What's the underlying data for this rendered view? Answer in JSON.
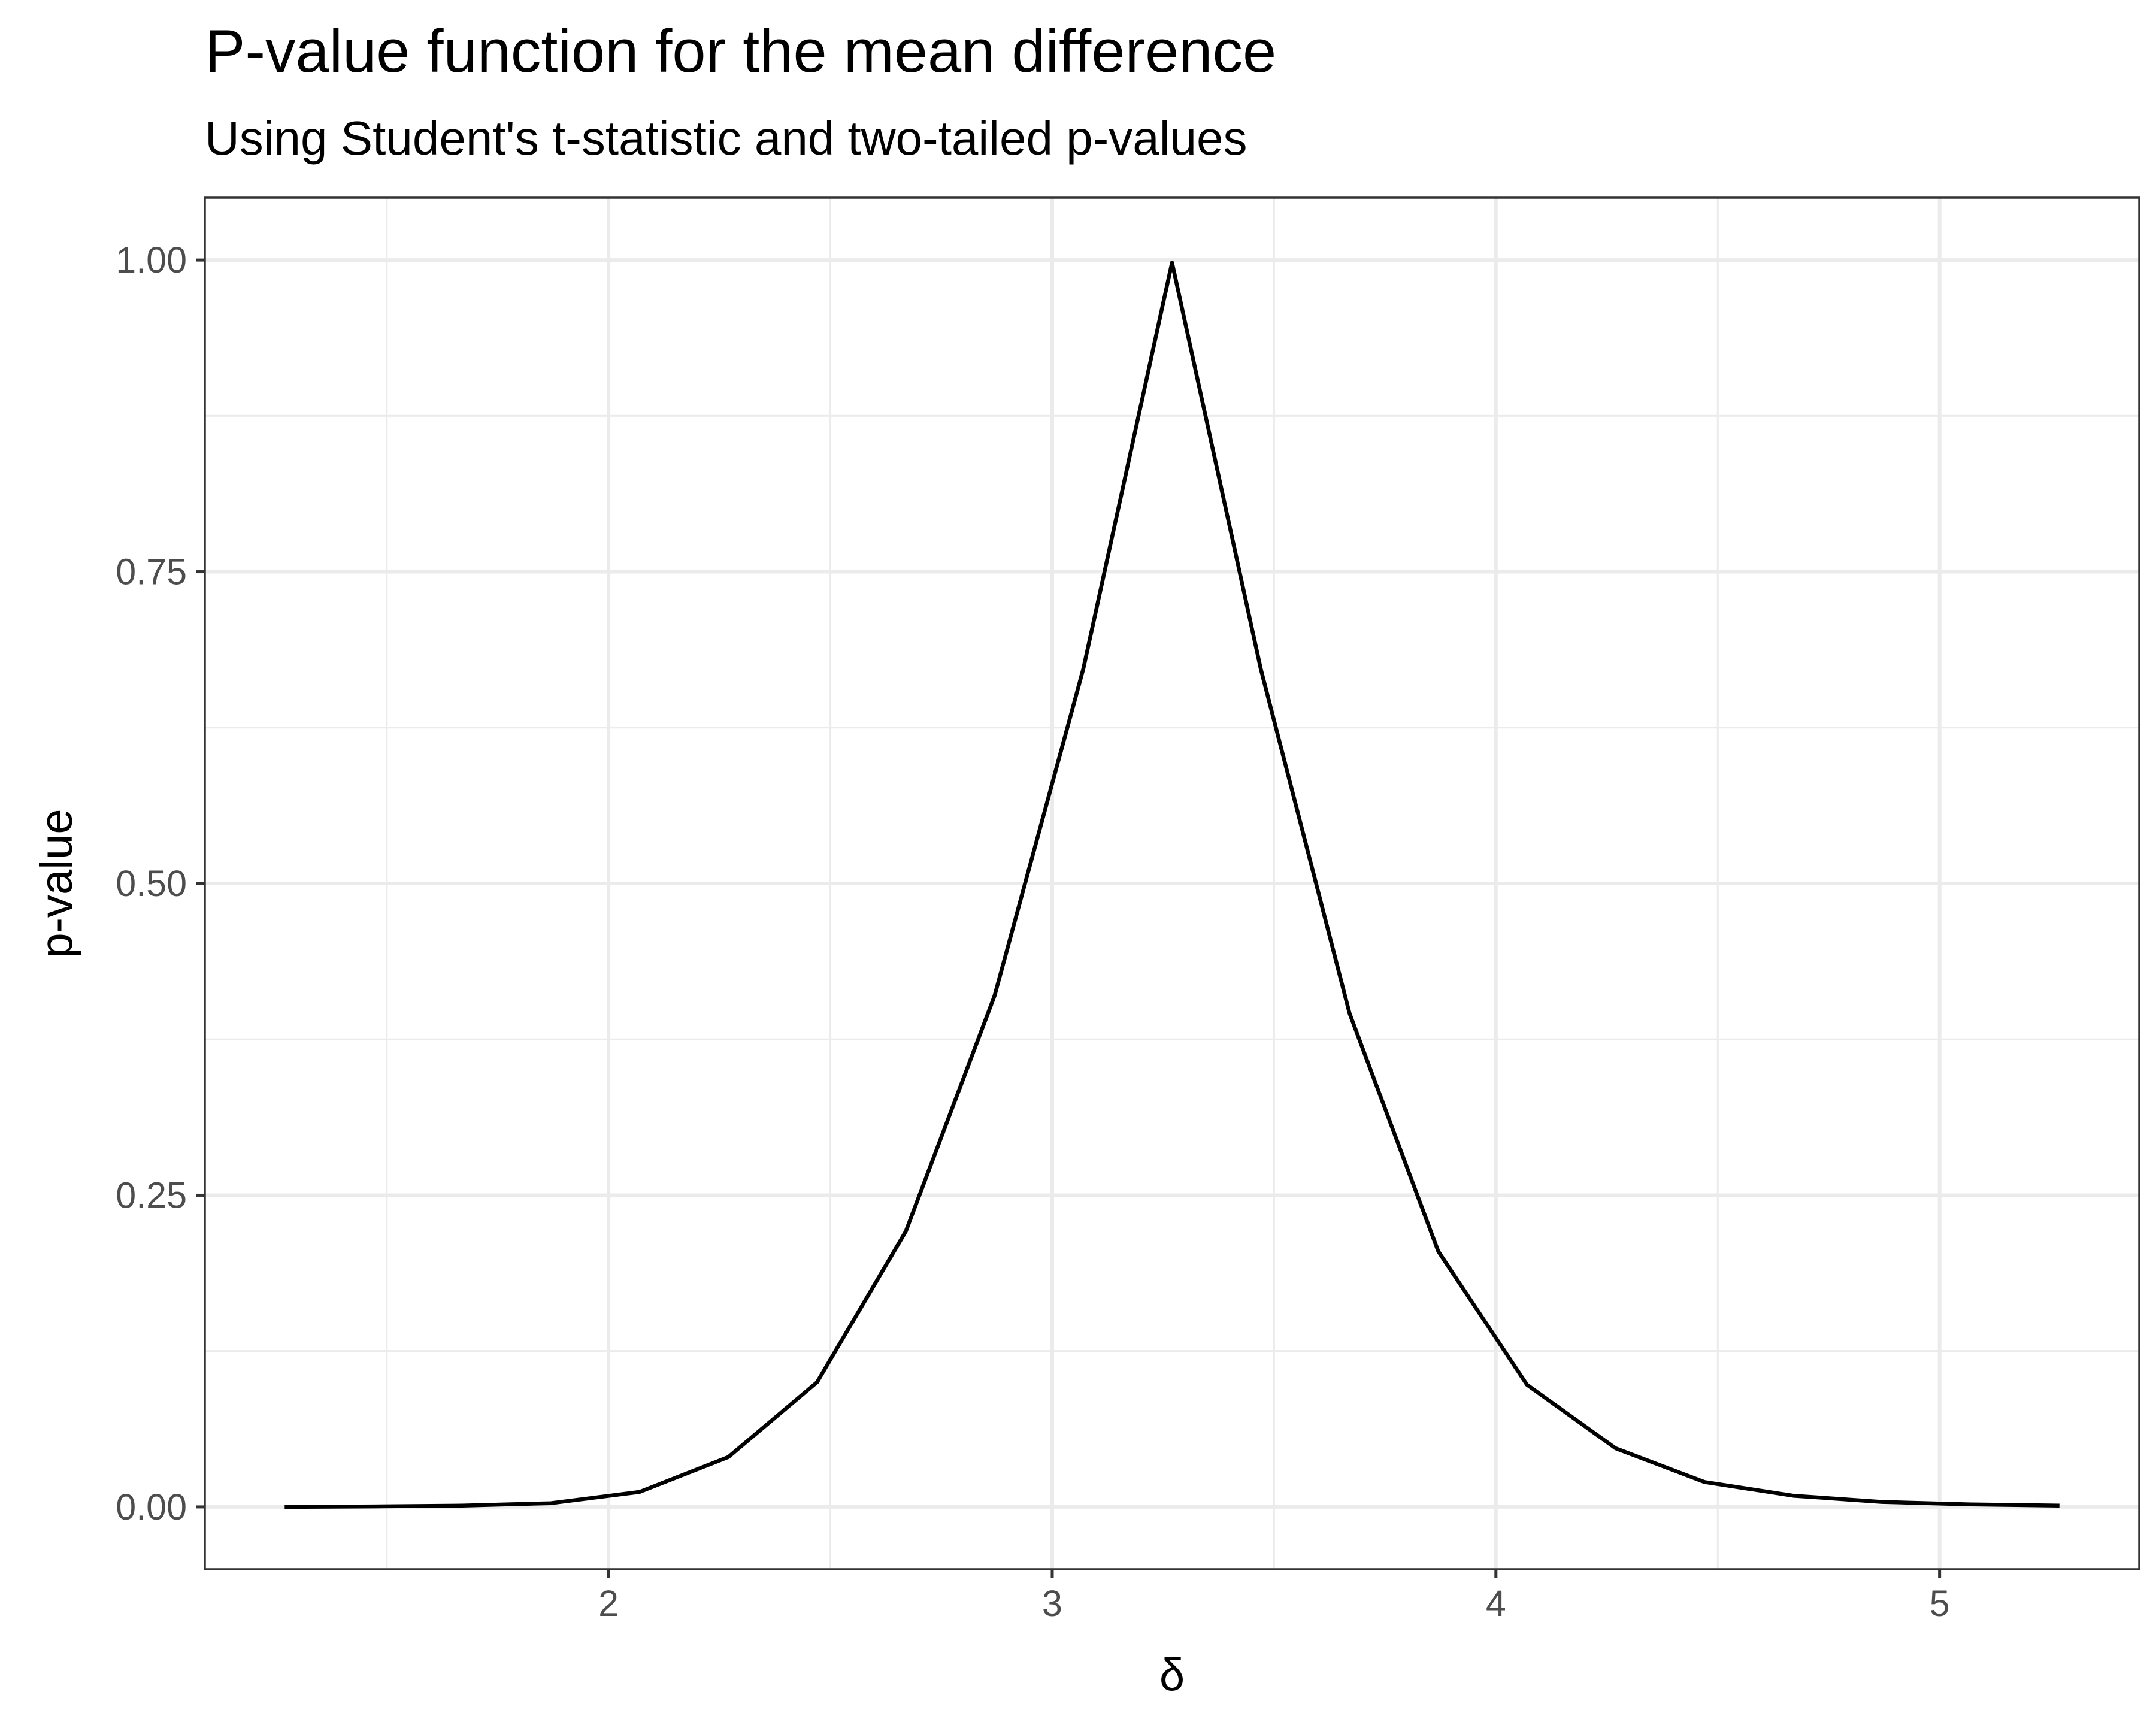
{
  "chart_data": {
    "type": "line",
    "title": "P-value function for the mean difference",
    "subtitle": "Using Student's t-statistic and two-tailed p-values",
    "xlabel": "δ",
    "ylabel": "p-value",
    "xlim": [
      1.09,
      5.45
    ],
    "ylim": [
      -0.05,
      1.05
    ],
    "x_ticks": [
      2,
      3,
      4,
      5
    ],
    "x_tick_labels": [
      "2",
      "3",
      "4",
      "5"
    ],
    "x_minor_ticks": [
      1.5,
      2.5,
      3.5,
      4.5
    ],
    "y_ticks": [
      0,
      0.25,
      0.5,
      0.75,
      1
    ],
    "y_tick_labels": [
      "0.00",
      "0.25",
      "0.50",
      "0.75",
      "1.00"
    ],
    "y_minor_ticks": [
      0.125,
      0.375,
      0.625,
      0.875
    ],
    "grid": true,
    "line_color": "#000000",
    "series": [
      {
        "x": [
          1.27,
          1.47,
          1.67,
          1.87,
          2.07,
          2.27,
          2.47,
          2.67,
          2.87,
          3.07,
          3.27,
          3.47,
          3.67,
          3.87,
          4.07,
          4.27,
          4.47,
          4.67,
          4.87,
          5.07,
          5.27
        ],
        "y": [
          0.0,
          0.0004,
          0.001,
          0.003,
          0.012,
          0.04,
          0.1,
          0.221,
          0.41,
          0.672,
          0.998,
          0.672,
          0.396,
          0.205,
          0.098,
          0.047,
          0.02,
          0.009,
          0.004,
          0.002,
          0.001
        ]
      }
    ]
  }
}
